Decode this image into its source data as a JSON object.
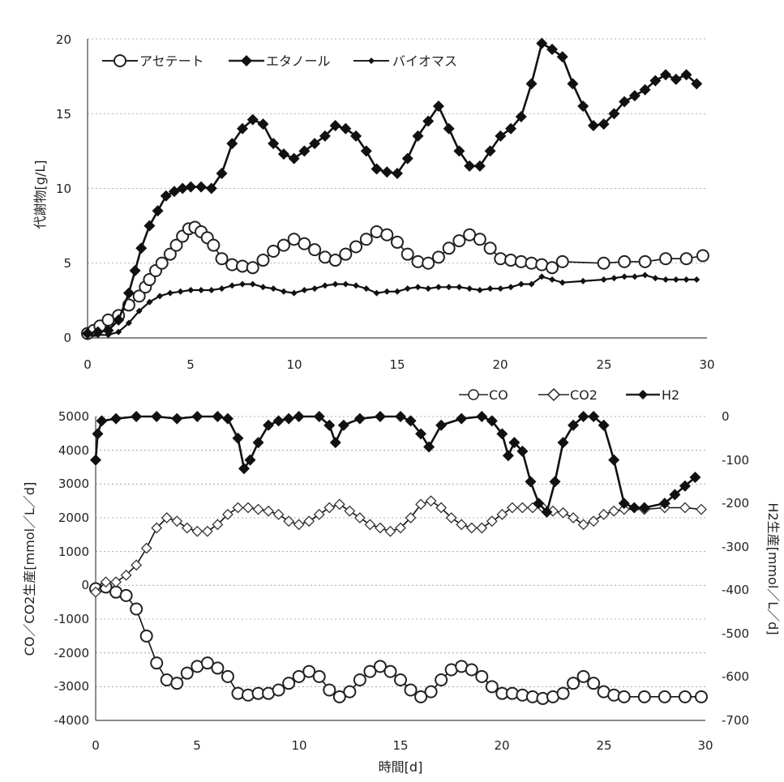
{
  "chart_data": [
    {
      "type": "line",
      "title": "",
      "xlabel": "",
      "ylabel": "代謝物[g/L]",
      "xlim": [
        0,
        30
      ],
      "ylim": [
        0,
        20
      ],
      "x_ticks": [
        "0",
        "5",
        "10",
        "15",
        "20",
        "25",
        "30"
      ],
      "y_ticks": [
        "0",
        "5",
        "10",
        "15",
        "20"
      ],
      "grid": "horizontal dotted",
      "legend_position": "top-left",
      "series": [
        {
          "name": "アセテート",
          "marker": "open-circle",
          "x": [
            0,
            0.3,
            0.6,
            1,
            1.5,
            2,
            2.5,
            2.8,
            3,
            3.3,
            3.6,
            4,
            4.3,
            4.6,
            4.9,
            5.2,
            5.5,
            5.8,
            6.1,
            6.5,
            7,
            7.5,
            8,
            8.5,
            9,
            9.5,
            10,
            10.5,
            11,
            11.5,
            12,
            12.5,
            13,
            13.5,
            14,
            14.5,
            15,
            15.5,
            16,
            16.5,
            17,
            17.5,
            18,
            18.5,
            19,
            19.5,
            20,
            20.5,
            21,
            21.5,
            22,
            22.5,
            23,
            25,
            26,
            27,
            28,
            29,
            29.8
          ],
          "y": [
            0.3,
            0.5,
            0.8,
            1.2,
            1.5,
            2.2,
            2.8,
            3.4,
            3.9,
            4.5,
            5.0,
            5.6,
            6.2,
            6.8,
            7.3,
            7.4,
            7.1,
            6.7,
            6.2,
            5.3,
            4.9,
            4.8,
            4.7,
            5.2,
            5.8,
            6.2,
            6.6,
            6.3,
            5.9,
            5.4,
            5.2,
            5.6,
            6.1,
            6.6,
            7.1,
            6.9,
            6.4,
            5.6,
            5.1,
            5.0,
            5.4,
            6.0,
            6.5,
            6.9,
            6.6,
            6.0,
            5.3,
            5.2,
            5.1,
            5.0,
            4.9,
            4.7,
            5.1,
            5.0,
            5.1,
            5.1,
            5.3,
            5.3,
            5.5
          ]
        },
        {
          "name": "エタノール",
          "marker": "filled-diamond",
          "x": [
            0,
            0.5,
            1,
            1.5,
            2,
            2.3,
            2.6,
            3,
            3.4,
            3.8,
            4.2,
            4.6,
            5,
            5.5,
            6,
            6.5,
            7,
            7.5,
            8,
            8.5,
            9,
            9.5,
            10,
            10.5,
            11,
            11.5,
            12,
            12.5,
            13,
            13.5,
            14,
            14.5,
            15,
            15.5,
            16,
            16.5,
            17,
            17.5,
            18,
            18.5,
            19,
            19.5,
            20,
            20.5,
            21,
            21.5,
            22,
            22.5,
            23,
            23.5,
            24,
            24.5,
            25,
            25.5,
            26,
            26.5,
            27,
            27.5,
            28,
            28.5,
            29,
            29.5
          ],
          "y": [
            0.3,
            0.4,
            0.5,
            1.2,
            3.0,
            4.5,
            6.0,
            7.5,
            8.5,
            9.5,
            9.8,
            10.0,
            10.1,
            10.1,
            10.0,
            11.0,
            13.0,
            14.0,
            14.6,
            14.3,
            13.0,
            12.3,
            12.0,
            12.5,
            13.0,
            13.5,
            14.2,
            14.0,
            13.5,
            12.5,
            11.3,
            11.1,
            11.0,
            12.0,
            13.5,
            14.5,
            15.5,
            14.0,
            12.5,
            11.5,
            11.5,
            12.5,
            13.5,
            14.0,
            14.8,
            17.0,
            19.7,
            19.3,
            18.8,
            17.0,
            15.5,
            14.2,
            14.3,
            15.0,
            15.8,
            16.2,
            16.6,
            17.2,
            17.6,
            17.3,
            17.6,
            17.0
          ]
        },
        {
          "name": "バイオマス",
          "marker": "small-filled-diamond",
          "x": [
            0,
            0.5,
            1,
            1.5,
            2,
            2.5,
            3,
            3.5,
            4,
            4.5,
            5,
            5.5,
            6,
            6.5,
            7,
            7.5,
            8,
            8.5,
            9,
            9.5,
            10,
            10.5,
            11,
            11.5,
            12,
            12.5,
            13,
            13.5,
            14,
            14.5,
            15,
            15.5,
            16,
            16.5,
            17,
            17.5,
            18,
            18.5,
            19,
            19.5,
            20,
            20.5,
            21,
            21.5,
            22,
            22.5,
            23,
            24,
            25,
            25.5,
            26,
            26.5,
            27,
            27.5,
            28,
            28.5,
            29,
            29.5
          ],
          "y": [
            0.2,
            0.2,
            0.2,
            0.4,
            1.0,
            1.8,
            2.4,
            2.8,
            3.0,
            3.1,
            3.2,
            3.2,
            3.2,
            3.3,
            3.5,
            3.6,
            3.6,
            3.4,
            3.3,
            3.1,
            3.0,
            3.2,
            3.3,
            3.5,
            3.6,
            3.6,
            3.5,
            3.3,
            3.0,
            3.1,
            3.1,
            3.3,
            3.4,
            3.3,
            3.4,
            3.4,
            3.4,
            3.3,
            3.2,
            3.3,
            3.3,
            3.4,
            3.6,
            3.6,
            4.1,
            3.9,
            3.7,
            3.8,
            3.9,
            4.0,
            4.1,
            4.1,
            4.2,
            4.0,
            3.9,
            3.9,
            3.9,
            3.9
          ]
        }
      ]
    },
    {
      "type": "line",
      "title": "",
      "xlabel": "時間[d]",
      "ylabel": "CO／CO2生産[mmol／L／d]",
      "ylabel_right": "H2生産[mmol／L／d]",
      "xlim": [
        0,
        30
      ],
      "ylim": [
        -4000,
        5000
      ],
      "ylim_right": [
        -700,
        0
      ],
      "x_ticks": [
        "0",
        "5",
        "10",
        "15",
        "20",
        "25",
        "30"
      ],
      "y_ticks": [
        "-4000",
        "-3000",
        "-2000",
        "-1000",
        "0",
        "1000",
        "2000",
        "3000",
        "4000",
        "5000"
      ],
      "y_ticks_right": [
        "-700",
        "-600",
        "-500",
        "-400",
        "-300",
        "-200",
        "-100",
        "0"
      ],
      "grid": "horizontal dotted",
      "legend_position": "top-right",
      "series": [
        {
          "name": "CO",
          "marker": "open-circle",
          "axis": "left",
          "x": [
            0,
            0.5,
            1,
            1.5,
            2,
            2.5,
            3,
            3.5,
            4,
            4.5,
            5,
            5.5,
            6,
            6.5,
            7,
            7.5,
            8,
            8.5,
            9,
            9.5,
            10,
            10.5,
            11,
            11.5,
            12,
            12.5,
            13,
            13.5,
            14,
            14.5,
            15,
            15.5,
            16,
            16.5,
            17,
            17.5,
            18,
            18.5,
            19,
            19.5,
            20,
            20.5,
            21,
            21.5,
            22,
            22.5,
            23,
            23.5,
            24,
            24.5,
            25,
            25.5,
            26,
            27,
            28,
            29,
            29.8
          ],
          "y": [
            -100,
            -50,
            -200,
            -300,
            -700,
            -1500,
            -2300,
            -2800,
            -2900,
            -2600,
            -2400,
            -2300,
            -2450,
            -2700,
            -3200,
            -3250,
            -3200,
            -3200,
            -3100,
            -2900,
            -2700,
            -2550,
            -2700,
            -3100,
            -3300,
            -3150,
            -2800,
            -2550,
            -2400,
            -2550,
            -2800,
            -3100,
            -3300,
            -3150,
            -2800,
            -2500,
            -2400,
            -2500,
            -2700,
            -3000,
            -3200,
            -3200,
            -3250,
            -3300,
            -3350,
            -3300,
            -3200,
            -2900,
            -2700,
            -2900,
            -3150,
            -3250,
            -3300,
            -3300,
            -3300,
            -3300,
            -3300
          ]
        },
        {
          "name": "CO2",
          "marker": "open-diamond",
          "axis": "left",
          "x": [
            0,
            0.5,
            1,
            1.5,
            2,
            2.5,
            3,
            3.5,
            4,
            4.5,
            5,
            5.5,
            6,
            6.5,
            7,
            7.5,
            8,
            8.5,
            9,
            9.5,
            10,
            10.5,
            11,
            11.5,
            12,
            12.5,
            13,
            13.5,
            14,
            14.5,
            15,
            15.5,
            16,
            16.5,
            17,
            17.5,
            18,
            18.5,
            19,
            19.5,
            20,
            20.5,
            21,
            21.5,
            22,
            22.5,
            23,
            23.5,
            24,
            24.5,
            25,
            25.5,
            26,
            27,
            28,
            29,
            29.8
          ],
          "y": [
            -200,
            100,
            100,
            300,
            600,
            1100,
            1700,
            2000,
            1900,
            1700,
            1600,
            1600,
            1800,
            2100,
            2300,
            2300,
            2250,
            2200,
            2100,
            1900,
            1800,
            1900,
            2100,
            2300,
            2400,
            2200,
            2000,
            1800,
            1700,
            1600,
            1700,
            2000,
            2400,
            2500,
            2300,
            2000,
            1800,
            1700,
            1700,
            1900,
            2100,
            2300,
            2300,
            2300,
            2300,
            2200,
            2150,
            2000,
            1800,
            1900,
            2100,
            2200,
            2250,
            2250,
            2300,
            2300,
            2250
          ]
        },
        {
          "name": "H2",
          "marker": "filled-diamond",
          "axis": "right",
          "x": [
            0,
            0.1,
            0.3,
            1,
            2,
            3,
            4,
            5,
            6,
            6.5,
            7,
            7.3,
            7.6,
            8,
            8.5,
            9,
            9.5,
            10,
            11,
            11.5,
            11.8,
            12.2,
            13,
            14,
            15,
            15.5,
            16,
            16.4,
            17,
            18,
            19,
            19.5,
            20,
            20.3,
            20.6,
            21,
            21.4,
            21.8,
            22.2,
            22.6,
            23,
            23.5,
            24,
            24.5,
            25,
            25.5,
            26,
            26.5,
            27,
            28,
            28.5,
            29,
            29.5
          ],
          "y": [
            -100,
            -40,
            -10,
            -5,
            0,
            0,
            -5,
            0,
            0,
            -5,
            -50,
            -120,
            -100,
            -60,
            -20,
            -10,
            -5,
            0,
            0,
            -20,
            -60,
            -20,
            -5,
            0,
            0,
            -10,
            -40,
            -70,
            -20,
            -5,
            0,
            -10,
            -40,
            -90,
            -60,
            -80,
            -150,
            -200,
            -220,
            -150,
            -60,
            -20,
            0,
            0,
            -20,
            -100,
            -200,
            -210,
            -210,
            -200,
            -180,
            -160,
            -140
          ]
        }
      ]
    }
  ]
}
